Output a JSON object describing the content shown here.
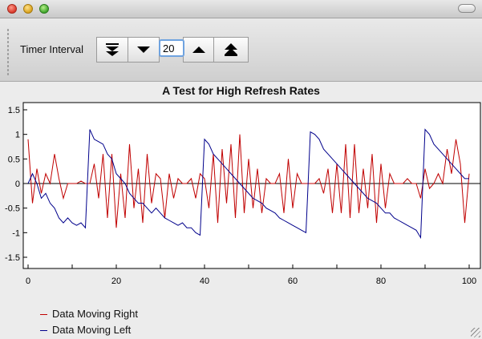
{
  "window": {
    "title_bar_controls": [
      "close",
      "minimize",
      "zoom"
    ]
  },
  "toolbar": {
    "timer_label": "Timer Interval",
    "interval_value": "20",
    "buttons": [
      "double-chevron-down-icon",
      "chevron-down-icon",
      "chevron-up-icon",
      "double-chevron-up-icon"
    ]
  },
  "chart_data": {
    "type": "line",
    "title": "A Test for High Refresh Rates",
    "xlabel": "",
    "ylabel": "",
    "xlim": [
      0,
      100
    ],
    "ylim": [
      -1.5,
      1.5
    ],
    "x_ticks": [
      "0",
      "20",
      "40",
      "60",
      "80",
      "100"
    ],
    "y_ticks": [
      "1.5",
      "1",
      "0.5",
      "0",
      "-0.5",
      "-1",
      "-1.5"
    ],
    "x": [
      0,
      1,
      2,
      3,
      4,
      5,
      6,
      7,
      8,
      9,
      10,
      11,
      12,
      13,
      14,
      15,
      16,
      17,
      18,
      19,
      20,
      21,
      22,
      23,
      24,
      25,
      26,
      27,
      28,
      29,
      30,
      31,
      32,
      33,
      34,
      35,
      36,
      37,
      38,
      39,
      40,
      41,
      42,
      43,
      44,
      45,
      46,
      47,
      48,
      49,
      50,
      51,
      52,
      53,
      54,
      55,
      56,
      57,
      58,
      59,
      60,
      61,
      62,
      63,
      64,
      65,
      66,
      67,
      68,
      69,
      70,
      71,
      72,
      73,
      74,
      75,
      76,
      77,
      78,
      79,
      80,
      81,
      82,
      83,
      84,
      85,
      86,
      87,
      88,
      89,
      90,
      91,
      92,
      93,
      94,
      95,
      96,
      97,
      98,
      99,
      100
    ],
    "series": [
      {
        "name": "Data Moving Right",
        "color": "#c00000",
        "values": [
          0.9,
          -0.4,
          0.3,
          -0.2,
          0.2,
          0.0,
          0.6,
          0.1,
          -0.3,
          0.0,
          0.0,
          0.0,
          0.05,
          0.0,
          0.0,
          0.4,
          -0.3,
          0.6,
          -0.7,
          0.6,
          -0.9,
          0.2,
          -0.7,
          0.8,
          -0.5,
          0.3,
          -0.8,
          0.6,
          -0.4,
          0.2,
          0.1,
          -0.7,
          0.2,
          -0.3,
          0.1,
          0.0,
          0.0,
          0.1,
          -0.3,
          0.2,
          0.1,
          -0.5,
          0.6,
          -0.8,
          0.7,
          -0.4,
          0.8,
          -0.7,
          1.0,
          -0.6,
          0.5,
          -0.5,
          0.3,
          -0.6,
          0.1,
          0.0,
          0.0,
          0.2,
          -0.6,
          0.5,
          -0.5,
          0.2,
          0.0,
          0.0,
          0.0,
          0.0,
          0.1,
          -0.2,
          0.3,
          -0.6,
          0.4,
          -0.6,
          0.8,
          -0.7,
          0.8,
          -0.6,
          0.3,
          -0.5,
          0.6,
          -0.8,
          0.4,
          -0.5,
          0.2,
          0.0,
          0.0,
          0.0,
          0.1,
          0.0,
          0.0,
          -0.3,
          0.3,
          -0.1,
          0.0,
          0.2,
          0.0,
          0.7,
          0.2,
          0.9,
          0.4,
          -0.8,
          0.2
        ]
      },
      {
        "name": "Data Moving Left",
        "color": "#00008b",
        "values": [
          0.0,
          0.2,
          0.0,
          -0.3,
          -0.2,
          -0.4,
          -0.5,
          -0.7,
          -0.8,
          -0.7,
          -0.8,
          -0.85,
          -0.8,
          -0.9,
          1.1,
          0.9,
          0.85,
          0.8,
          0.6,
          0.5,
          0.2,
          0.1,
          0.0,
          -0.2,
          -0.3,
          -0.4,
          -0.4,
          -0.5,
          -0.6,
          -0.5,
          -0.6,
          -0.7,
          -0.75,
          -0.8,
          -0.85,
          -0.8,
          -0.9,
          -0.9,
          -1.0,
          -1.05,
          0.9,
          0.8,
          0.6,
          0.5,
          0.4,
          0.3,
          0.2,
          0.1,
          0.0,
          -0.1,
          -0.2,
          -0.3,
          -0.35,
          -0.4,
          -0.5,
          -0.55,
          -0.6,
          -0.7,
          -0.75,
          -0.8,
          -0.85,
          -0.9,
          -0.95,
          -1.0,
          1.05,
          1.0,
          0.9,
          0.7,
          0.6,
          0.5,
          0.4,
          0.3,
          0.2,
          0.1,
          0.0,
          -0.1,
          -0.2,
          -0.3,
          -0.35,
          -0.4,
          -0.5,
          -0.6,
          -0.6,
          -0.7,
          -0.75,
          -0.8,
          -0.85,
          -0.9,
          -0.95,
          -1.1,
          1.1,
          1.0,
          0.8,
          0.7,
          0.6,
          0.5,
          0.4,
          0.3,
          0.2,
          0.1,
          0.1
        ]
      }
    ]
  }
}
